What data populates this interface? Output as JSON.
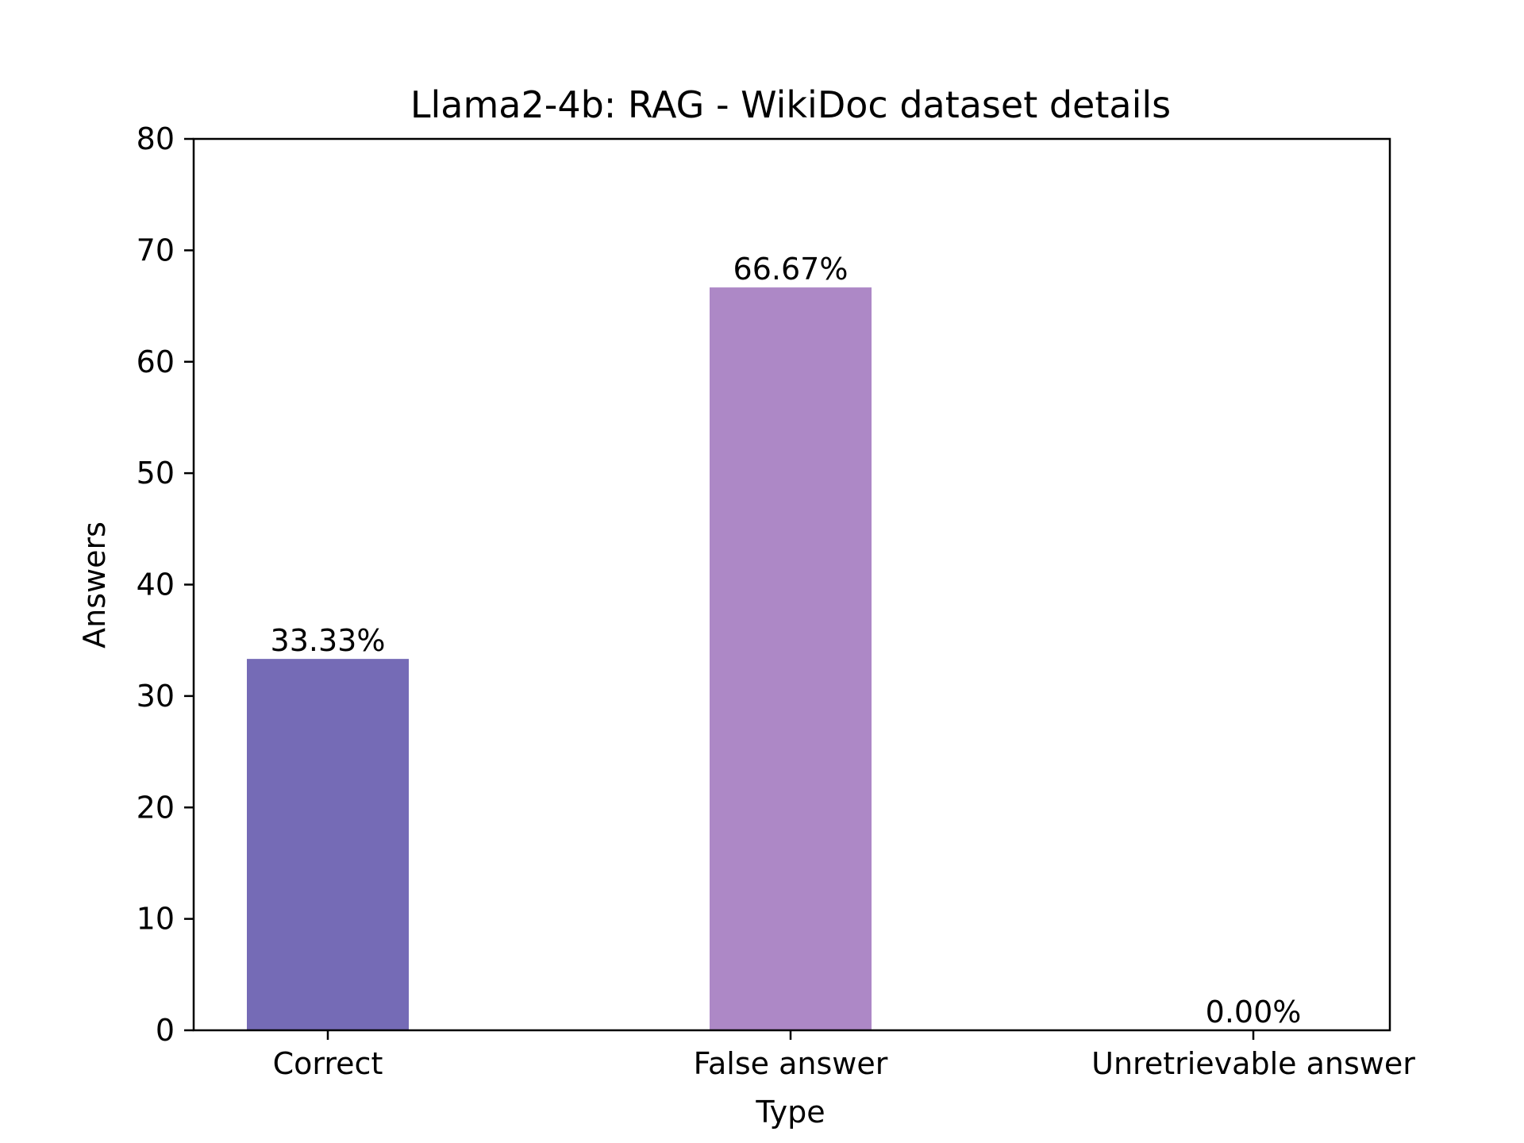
{
  "chart_data": {
    "type": "bar",
    "title": "Llama2-4b: RAG - WikiDoc dataset details",
    "xlabel": "Type",
    "ylabel": "Answers",
    "categories": [
      "Correct",
      "False answer",
      "Unretrievable answer"
    ],
    "values": [
      33.33,
      66.67,
      0.0
    ],
    "data_labels": [
      "33.33%",
      "66.67%",
      "0.00%"
    ],
    "bar_colors": [
      "#756bb6",
      "#ad88c6",
      "#ad88c6"
    ],
    "ylim": [
      0,
      80
    ],
    "yticks": [
      0,
      10,
      20,
      30,
      40,
      50,
      60,
      70,
      80
    ],
    "ytick_labels": [
      "0",
      "10",
      "20",
      "30",
      "40",
      "50",
      "60",
      "70",
      "80"
    ],
    "grid": false,
    "legend": "none"
  }
}
